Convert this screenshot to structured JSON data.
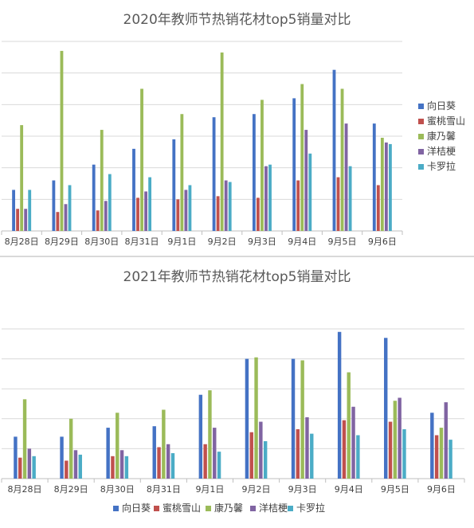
{
  "colors": {
    "series": [
      "#4472c4",
      "#c0504d",
      "#9bbb59",
      "#8064a2",
      "#4bacc6"
    ],
    "grid": "#d9d9d9",
    "axis": "#bfbfbf",
    "text": "#404040"
  },
  "chart_data": [
    {
      "type": "bar",
      "title": "2020年教师节热销花材top5销量对比",
      "categories": [
        "8月28日",
        "8月29日",
        "8月30日",
        "8月31日",
        "9月1日",
        "9月2日",
        "9月3日",
        "9月4日",
        "9月5日",
        "9月6日"
      ],
      "series": [
        {
          "name": "向日葵",
          "values": [
            13,
            16,
            21,
            26,
            29,
            36,
            37,
            42,
            51,
            34
          ]
        },
        {
          "name": "蜜桃雪山",
          "values": [
            7,
            6,
            6.5,
            10.5,
            10,
            11,
            10.5,
            16,
            17,
            14.5
          ]
        },
        {
          "name": "康乃馨",
          "values": [
            33.5,
            57,
            32,
            45,
            37,
            56.5,
            41.5,
            46.5,
            45,
            29.5
          ]
        },
        {
          "name": "洋桔梗",
          "values": [
            7,
            8.5,
            9.5,
            12.5,
            13,
            16,
            20.5,
            32,
            34,
            28
          ]
        },
        {
          "name": "卡罗拉",
          "values": [
            13,
            14.5,
            18,
            17,
            14.5,
            15.5,
            21,
            24.5,
            20.5,
            27.5
          ]
        }
      ],
      "ylim": [
        0,
        60
      ],
      "grid": true,
      "legend": "right"
    },
    {
      "type": "bar",
      "title": "2021年教师节热销花材top5销量对比",
      "categories": [
        "8月28日",
        "8月29日",
        "8月30日",
        "8月31日",
        "9月1日",
        "9月2日",
        "9月3日",
        "9月4日",
        "9月5日",
        "9月6日"
      ],
      "series": [
        {
          "name": "向日葵",
          "values": [
            14,
            14,
            17,
            17.5,
            28,
            40,
            40,
            49,
            47,
            22
          ]
        },
        {
          "name": "蜜桃雪山",
          "values": [
            7,
            6,
            7.5,
            10.5,
            11.5,
            15.5,
            16.5,
            19.5,
            19,
            14.5
          ]
        },
        {
          "name": "康乃馨",
          "values": [
            26.5,
            20,
            22,
            23,
            29.5,
            40.5,
            39.5,
            35.5,
            26,
            17
          ]
        },
        {
          "name": "洋桔梗",
          "values": [
            10,
            9.5,
            9.5,
            11.5,
            17,
            19,
            20.5,
            24,
            27,
            25.5
          ]
        },
        {
          "name": "卡罗拉",
          "values": [
            7.5,
            8,
            7.5,
            8.5,
            9,
            12.5,
            15,
            14.5,
            16.5,
            13
          ]
        }
      ],
      "ylim": [
        0,
        50
      ],
      "grid": true,
      "legend": "bottom"
    }
  ]
}
